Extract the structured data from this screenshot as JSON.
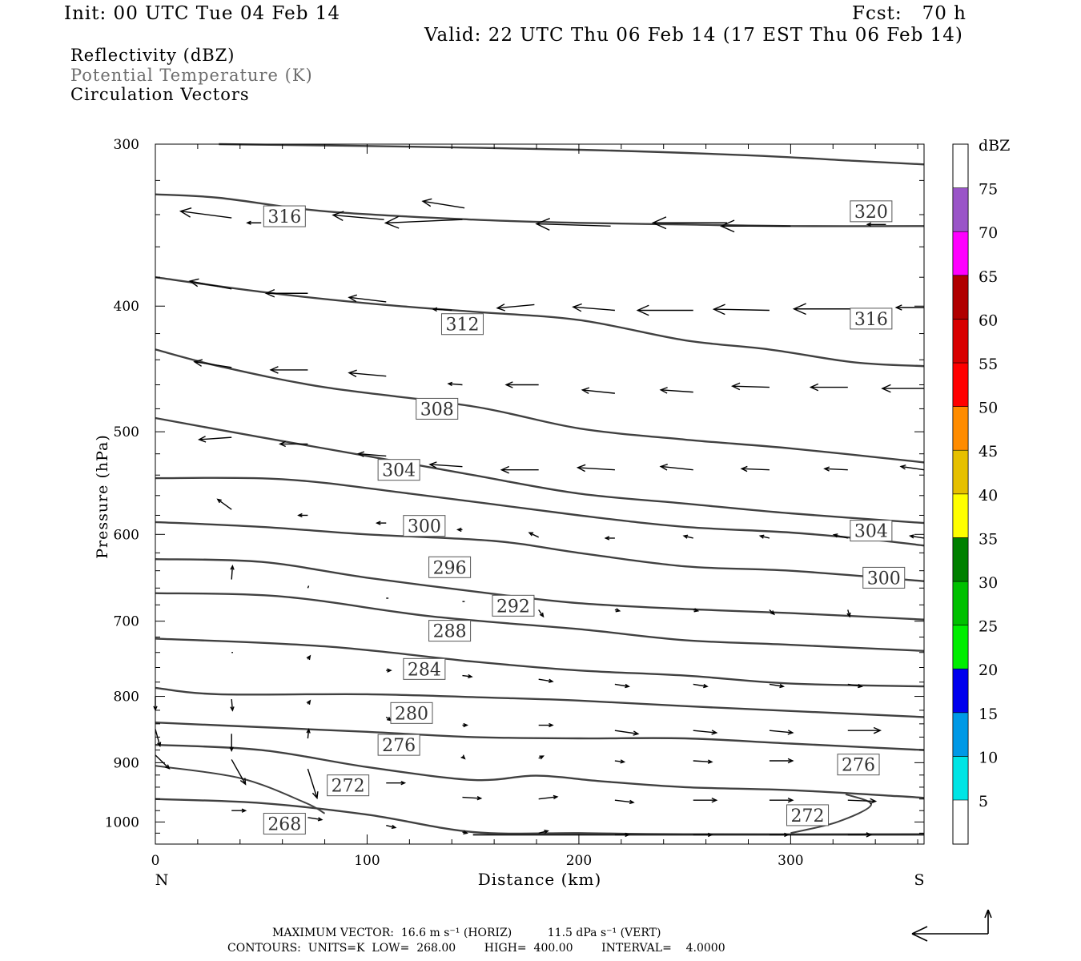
{
  "header": {
    "init": "Init: 00 UTC Tue 04 Feb 14",
    "fcst": "Fcst:   70 h",
    "valid": "Valid: 22 UTC Thu 06 Feb 14 (17 EST Thu 06 Feb 14)"
  },
  "fields": {
    "reflectivity": "Reflectivity (dBZ)",
    "theta": "Potential Temperature (K)",
    "vectors": "Circulation Vectors"
  },
  "footer": {
    "max_vector": "MAXIMUM VECTOR:  16.6 m s⁻¹ (HORIZ)          11.5 dPa s⁻¹ (VERT)",
    "contours": "CONTOURS:  UNITS=K  LOW=  268.00        HIGH=  400.00        INTERVAL=    4.0000"
  },
  "colorbar": {
    "title": "dBZ",
    "labels": [
      "5",
      "10",
      "15",
      "20",
      "25",
      "30",
      "35",
      "40",
      "45",
      "50",
      "55",
      "60",
      "65",
      "70",
      "75"
    ],
    "colors": [
      "#00e5e5",
      "#0099e6",
      "#0000ee",
      "#00ee00",
      "#00c000",
      "#008000",
      "#ffff00",
      "#e6c000",
      "#ff8c00",
      "#ff0000",
      "#d80000",
      "#b00000",
      "#ff00ff",
      "#9a55c8"
    ]
  },
  "chart_data": {
    "type": "cross-section",
    "title": "",
    "xlabel": "Distance (km)",
    "ylabel": "Pressure (hPa)",
    "xlim": [
      0,
      363
    ],
    "ylim": [
      1040,
      300
    ],
    "y_scale": "log",
    "xticks": [
      0,
      100,
      200,
      300
    ],
    "yticks": [
      300,
      400,
      500,
      600,
      700,
      800,
      900,
      1000
    ],
    "left_end_label": "N",
    "right_end_label": "S",
    "contour_color": "#404040",
    "isentropes": [
      {
        "theta": 320,
        "points": [
          [
            30,
            300
          ],
          [
            100,
            301
          ],
          [
            200,
            303
          ],
          [
            280,
            306
          ],
          [
            330,
            309
          ],
          [
            363,
            311
          ]
        ]
      },
      {
        "theta": 316,
        "points": [
          [
            0,
            328
          ],
          [
            30,
            330
          ],
          [
            80,
            338
          ],
          [
            150,
            343
          ],
          [
            200,
            345
          ],
          [
            250,
            346
          ],
          [
            300,
            347
          ],
          [
            363,
            347
          ]
        ]
      },
      {
        "theta": 312,
        "points": [
          [
            0,
            380
          ],
          [
            50,
            390
          ],
          [
            100,
            398
          ],
          [
            150,
            404
          ],
          [
            200,
            410
          ],
          [
            250,
            425
          ],
          [
            290,
            432
          ],
          [
            330,
            442
          ],
          [
            363,
            445
          ]
        ]
      },
      {
        "theta": 308,
        "points": [
          [
            0,
            432
          ],
          [
            30,
            445
          ],
          [
            80,
            462
          ],
          [
            150,
            478
          ],
          [
            200,
            497
          ],
          [
            250,
            507
          ],
          [
            300,
            515
          ],
          [
            363,
            528
          ]
        ]
      },
      {
        "theta": 304,
        "points": [
          [
            0,
            488
          ],
          [
            50,
            505
          ],
          [
            100,
            522
          ],
          [
            150,
            540
          ],
          [
            200,
            558
          ],
          [
            250,
            568
          ],
          [
            300,
            578
          ],
          [
            363,
            588
          ]
        ]
      },
      {
        "theta": 300,
        "points": [
          [
            0,
            543
          ],
          [
            60,
            544
          ],
          [
            120,
            558
          ],
          [
            200,
            580
          ],
          [
            250,
            592
          ],
          [
            300,
            598
          ],
          [
            340,
            606
          ],
          [
            363,
            612
          ]
        ]
      },
      {
        "theta": 296,
        "points": [
          [
            0,
            587
          ],
          [
            50,
            592
          ],
          [
            100,
            600
          ],
          [
            160,
            607
          ],
          [
            200,
            620
          ],
          [
            250,
            635
          ],
          [
            300,
            640
          ],
          [
            363,
            652
          ]
        ]
      },
      {
        "theta": 292,
        "points": [
          [
            0,
            627
          ],
          [
            50,
            630
          ],
          [
            100,
            648
          ],
          [
            160,
            667
          ],
          [
            200,
            678
          ],
          [
            250,
            685
          ],
          [
            300,
            690
          ],
          [
            363,
            698
          ]
        ]
      },
      {
        "theta": 288,
        "points": [
          [
            0,
            666
          ],
          [
            60,
            670
          ],
          [
            130,
            694
          ],
          [
            200,
            710
          ],
          [
            250,
            724
          ],
          [
            300,
            730
          ],
          [
            363,
            738
          ]
        ]
      },
      {
        "theta": 284,
        "points": [
          [
            0,
            722
          ],
          [
            80,
            732
          ],
          [
            150,
            752
          ],
          [
            200,
            764
          ],
          [
            250,
            771
          ],
          [
            300,
            782
          ],
          [
            363,
            786
          ]
        ]
      },
      {
        "theta": 280,
        "points": [
          [
            0,
            788
          ],
          [
            30,
            797
          ],
          [
            100,
            797
          ],
          [
            160,
            802
          ],
          [
            200,
            806
          ],
          [
            250,
            814
          ],
          [
            300,
            821
          ],
          [
            363,
            830
          ]
        ]
      },
      {
        "theta": 276,
        "points": [
          [
            0,
            838
          ],
          [
            50,
            845
          ],
          [
            100,
            852
          ],
          [
            150,
            860
          ],
          [
            200,
            862
          ],
          [
            250,
            862
          ],
          [
            300,
            870
          ],
          [
            363,
            880
          ]
        ]
      },
      {
        "theta": 272,
        "points": [
          [
            0,
            872
          ],
          [
            50,
            880
          ],
          [
            100,
            907
          ],
          [
            150,
            928
          ],
          [
            180,
            921
          ],
          [
            210,
            930
          ],
          [
            250,
            940
          ],
          [
            300,
            945
          ],
          [
            350,
            955
          ],
          [
            363,
            958
          ]
        ]
      },
      {
        "theta": 268,
        "points": [
          [
            0,
            960
          ],
          [
            50,
            967
          ],
          [
            100,
            987
          ],
          [
            150,
            1018
          ],
          [
            200,
            1020
          ],
          [
            250,
            1022
          ],
          [
            363,
            1022
          ]
        ]
      }
    ],
    "closed_272": [
      [
        0,
        905
      ],
      [
        40,
        925
      ],
      [
        70,
        965
      ],
      [
        80,
        985
      ]
    ],
    "closed_272_east": [
      [
        300,
        1020
      ],
      [
        322,
        1000
      ],
      [
        338,
        970
      ],
      [
        326,
        952
      ]
    ],
    "ground": [
      [
        150,
        1023
      ],
      [
        363,
        1023
      ]
    ],
    "contour_labels": [
      {
        "text": "316",
        "x": 61,
        "p": 341
      },
      {
        "text": "320",
        "x": 338,
        "p": 338
      },
      {
        "text": "312",
        "x": 145,
        "p": 413
      },
      {
        "text": "316",
        "x": 338,
        "p": 409
      },
      {
        "text": "308",
        "x": 133,
        "p": 480
      },
      {
        "text": "304",
        "x": 115,
        "p": 535
      },
      {
        "text": "300",
        "x": 127,
        "p": 591
      },
      {
        "text": "304",
        "x": 338,
        "p": 596
      },
      {
        "text": "296",
        "x": 139,
        "p": 636
      },
      {
        "text": "300",
        "x": 344,
        "p": 648
      },
      {
        "text": "292",
        "x": 169,
        "p": 681
      },
      {
        "text": "288",
        "x": 139,
        "p": 712
      },
      {
        "text": "284",
        "x": 127,
        "p": 762
      },
      {
        "text": "280",
        "x": 121,
        "p": 824
      },
      {
        "text": "276",
        "x": 115,
        "p": 872
      },
      {
        "text": "276",
        "x": 332,
        "p": 903
      },
      {
        "text": "272",
        "x": 91,
        "p": 937
      },
      {
        "text": "272",
        "x": 308,
        "p": 988
      },
      {
        "text": "268",
        "x": 61,
        "p": 1003
      }
    ],
    "vectors": [
      {
        "x": 36,
        "p": 342,
        "u": -11,
        "w": 0.6
      },
      {
        "x": 50,
        "p": 345,
        "u": -3,
        "w": 0
      },
      {
        "x": 108,
        "p": 343,
        "u": -11,
        "w": 0.4
      },
      {
        "x": 145,
        "p": 343,
        "u": -16.6,
        "w": -0.3
      },
      {
        "x": 146,
        "p": 336,
        "u": -9,
        "w": 0.6
      },
      {
        "x": 215,
        "p": 347,
        "u": -16,
        "w": 0.2
      },
      {
        "x": 270,
        "p": 345,
        "u": -16,
        "w": 0
      },
      {
        "x": 300,
        "p": 347,
        "u": -15,
        "w": 0
      },
      {
        "x": 345,
        "p": 346,
        "u": -4,
        "w": 0
      },
      {
        "x": 36,
        "p": 388,
        "u": -9,
        "w": 0.7
      },
      {
        "x": 72,
        "p": 391,
        "u": -9,
        "w": 0
      },
      {
        "x": 109,
        "p": 397,
        "u": -8,
        "w": 0.4
      },
      {
        "x": 140,
        "p": 403,
        "u": -4,
        "w": 0.1
      },
      {
        "x": 179,
        "p": 399,
        "u": -8,
        "w": -0.3
      },
      {
        "x": 217,
        "p": 403,
        "u": -9,
        "w": 0.3
      },
      {
        "x": 254,
        "p": 403,
        "u": -12,
        "w": 0
      },
      {
        "x": 290,
        "p": 403,
        "u": -12,
        "w": 0.1
      },
      {
        "x": 330,
        "p": 402,
        "u": -13,
        "w": 0
      },
      {
        "x": 363,
        "p": 401,
        "u": -6,
        "w": 0
      },
      {
        "x": 36,
        "p": 446,
        "u": -8,
        "w": 0.5
      },
      {
        "x": 72,
        "p": 448,
        "u": -8,
        "w": 0
      },
      {
        "x": 109,
        "p": 453,
        "u": -8,
        "w": 0.3
      },
      {
        "x": 145,
        "p": 460,
        "u": -3,
        "w": 0.1
      },
      {
        "x": 181,
        "p": 460,
        "u": -7,
        "w": 0
      },
      {
        "x": 217,
        "p": 467,
        "u": -7,
        "w": 0.3
      },
      {
        "x": 254,
        "p": 466,
        "u": -7,
        "w": 0.2
      },
      {
        "x": 290,
        "p": 462,
        "u": -8,
        "w": 0.1
      },
      {
        "x": 327,
        "p": 462,
        "u": -8,
        "w": 0
      },
      {
        "x": 363,
        "p": 463,
        "u": -9,
        "w": 0
      },
      {
        "x": 36,
        "p": 505,
        "u": -7,
        "w": -0.2
      },
      {
        "x": 72,
        "p": 511,
        "u": -6,
        "w": 0
      },
      {
        "x": 109,
        "p": 522,
        "u": -6,
        "w": 0.2
      },
      {
        "x": 145,
        "p": 532,
        "u": -7,
        "w": 0.2
      },
      {
        "x": 181,
        "p": 535,
        "u": -8,
        "w": 0
      },
      {
        "x": 217,
        "p": 535,
        "u": -8,
        "w": 0.2
      },
      {
        "x": 254,
        "p": 535,
        "u": -7,
        "w": 0.3
      },
      {
        "x": 290,
        "p": 535,
        "u": -6,
        "w": 0.1
      },
      {
        "x": 327,
        "p": 535,
        "u": -5,
        "w": 0.1
      },
      {
        "x": 363,
        "p": 535,
        "u": -5,
        "w": 0.3
      },
      {
        "x": 36,
        "p": 574,
        "u": -3,
        "w": 0.9
      },
      {
        "x": 72,
        "p": 580,
        "u": -2,
        "w": 0
      },
      {
        "x": 109,
        "p": 588,
        "u": -2,
        "w": 0
      },
      {
        "x": 145,
        "p": 595,
        "u": -1,
        "w": 0
      },
      {
        "x": 181,
        "p": 603,
        "u": -2,
        "w": 0.4
      },
      {
        "x": 217,
        "p": 604,
        "u": -2,
        "w": 0
      },
      {
        "x": 254,
        "p": 604,
        "u": -2,
        "w": 0.2
      },
      {
        "x": 290,
        "p": 604,
        "u": -2,
        "w": 0.2
      },
      {
        "x": 327,
        "p": 604,
        "u": -3,
        "w": 0.3
      },
      {
        "x": 363,
        "p": 604,
        "u": -3,
        "w": 0.2
      },
      {
        "x": 36,
        "p": 650,
        "u": 0.2,
        "w": 1.2
      },
      {
        "x": 72,
        "p": 660,
        "u": 0.2,
        "w": 0.2
      },
      {
        "x": 109,
        "p": 672,
        "u": 0.5,
        "w": 0
      },
      {
        "x": 145,
        "p": 676,
        "u": 0.5,
        "w": 0
      },
      {
        "x": 181,
        "p": 686,
        "u": 1,
        "w": -0.6
      },
      {
        "x": 217,
        "p": 686,
        "u": 1,
        "w": -0.1
      },
      {
        "x": 254,
        "p": 686,
        "u": 1,
        "w": -0.1
      },
      {
        "x": 290,
        "p": 686,
        "u": 1,
        "w": -0.4
      },
      {
        "x": 327,
        "p": 686,
        "u": 0.4,
        "w": -0.6
      },
      {
        "x": 36,
        "p": 740,
        "u": 0.3,
        "w": 0
      },
      {
        "x": 72,
        "p": 749,
        "u": 0.5,
        "w": 0.3
      },
      {
        "x": 109,
        "p": 764,
        "u": 1,
        "w": 0
      },
      {
        "x": 145,
        "p": 771,
        "u": 2,
        "w": -0.1
      },
      {
        "x": 181,
        "p": 776,
        "u": 3,
        "w": -0.2
      },
      {
        "x": 217,
        "p": 783,
        "u": 3,
        "w": -0.2
      },
      {
        "x": 254,
        "p": 783,
        "u": 3,
        "w": -0.2
      },
      {
        "x": 290,
        "p": 783,
        "u": 3,
        "w": -0.2
      },
      {
        "x": 327,
        "p": 783,
        "u": 3,
        "w": -0.2
      },
      {
        "x": 0,
        "p": 800,
        "u": 0,
        "w": -1.2
      },
      {
        "x": 36,
        "p": 804,
        "u": 0.2,
        "w": -1.0
      },
      {
        "x": 72,
        "p": 811,
        "u": 0.5,
        "w": 0.3
      },
      {
        "x": 109,
        "p": 830,
        "u": 1,
        "w": -0.3
      },
      {
        "x": 145,
        "p": 842,
        "u": 1,
        "w": 0
      },
      {
        "x": 181,
        "p": 842,
        "u": 3,
        "w": 0
      },
      {
        "x": 217,
        "p": 850,
        "u": 5,
        "w": -0.3
      },
      {
        "x": 254,
        "p": 850,
        "u": 5,
        "w": -0.2
      },
      {
        "x": 290,
        "p": 850,
        "u": 5,
        "w": -0.2
      },
      {
        "x": 327,
        "p": 850,
        "u": 7,
        "w": 0
      },
      {
        "x": 0,
        "p": 848,
        "u": 1,
        "w": -1.5
      },
      {
        "x": 36,
        "p": 855,
        "u": 0,
        "w": -1.5
      },
      {
        "x": 72,
        "p": 862,
        "u": 0.2,
        "w": 0.8
      },
      {
        "x": 109,
        "p": 875,
        "u": -1,
        "w": 0
      },
      {
        "x": 145,
        "p": 890,
        "u": 0.5,
        "w": -0.2
      },
      {
        "x": 181,
        "p": 893,
        "u": 1,
        "w": 0.2
      },
      {
        "x": 217,
        "p": 897,
        "u": 2,
        "w": -0.1
      },
      {
        "x": 254,
        "p": 897,
        "u": 4,
        "w": -0.1
      },
      {
        "x": 290,
        "p": 897,
        "u": 5,
        "w": 0
      },
      {
        "x": 327,
        "p": 897,
        "u": 6,
        "w": 0
      },
      {
        "x": 0,
        "p": 888,
        "u": 3,
        "w": -1.2
      },
      {
        "x": 36,
        "p": 895,
        "u": 3,
        "w": -2.2
      },
      {
        "x": 72,
        "p": 910,
        "u": 2,
        "w": -2.6
      },
      {
        "x": 109,
        "p": 933,
        "u": 4,
        "w": 0
      },
      {
        "x": 145,
        "p": 957,
        "u": 4,
        "w": -0.1
      },
      {
        "x": 181,
        "p": 960,
        "u": 4,
        "w": 0.2
      },
      {
        "x": 217,
        "p": 962,
        "u": 4,
        "w": -0.2
      },
      {
        "x": 254,
        "p": 962,
        "u": 5,
        "w": 0
      },
      {
        "x": 290,
        "p": 962,
        "u": 5,
        "w": 0
      },
      {
        "x": 327,
        "p": 962,
        "u": 6,
        "w": -0.1
      },
      {
        "x": 36,
        "p": 980,
        "u": 3,
        "w": 0
      },
      {
        "x": 72,
        "p": 992,
        "u": 3,
        "w": -0.2
      },
      {
        "x": 109,
        "p": 1006,
        "u": 2,
        "w": -0.2
      },
      {
        "x": 145,
        "p": 1018,
        "u": 1,
        "w": -0.1
      },
      {
        "x": 181,
        "p": 1020,
        "u": 2,
        "w": 0.2
      },
      {
        "x": 217,
        "p": 1023,
        "u": 3,
        "w": 0
      },
      {
        "x": 254,
        "p": 1023,
        "u": 4,
        "w": 0
      },
      {
        "x": 290,
        "p": 1023,
        "u": 4,
        "w": 0
      },
      {
        "x": 327,
        "p": 1023,
        "u": 5,
        "w": 0
      }
    ]
  }
}
